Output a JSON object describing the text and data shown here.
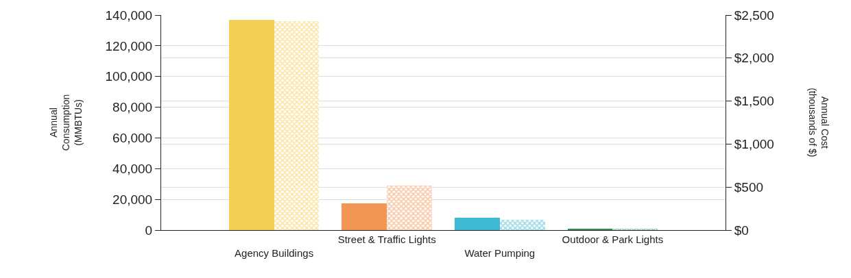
{
  "chart_data": {
    "type": "bar",
    "categories": [
      "Agency Buildings",
      "Street & Traffic Lights",
      "Water Pumping",
      "Outdoor & Park Lights"
    ],
    "series": [
      {
        "colors": [
          "#f3cf55",
          "#f29656",
          "#3db9d3",
          "#3a8f55"
        ],
        "values": [
          137000,
          17300,
          8100,
          1000
        ]
      },
      {
        "colors": [
          "#f3cf55",
          "#f29656",
          "#3db9d3",
          "#3a8f55"
        ],
        "values": [
          2430,
          515,
          120,
          15
        ],
        "axis": "y2"
      }
    ],
    "ylabel": "Annual\nConsumption\n(MMBTUs)",
    "y2label": "Annual Cost\n(thousands of $)",
    "ylim": [
      0,
      140000
    ],
    "yticks": [
      {
        "value": 0,
        "label": "0"
      },
      {
        "value": 20000,
        "label": "20,000"
      },
      {
        "value": 40000,
        "label": "40,000"
      },
      {
        "value": 60000,
        "label": "60,000"
      },
      {
        "value": 80000,
        "label": "80,000"
      },
      {
        "value": 100000,
        "label": "100,000"
      },
      {
        "value": 120000,
        "label": "120,000"
      },
      {
        "value": 140000,
        "label": "140,000"
      }
    ],
    "y2lim": [
      0,
      2500
    ],
    "y2ticks": [
      {
        "value": 0,
        "label": "$0"
      },
      {
        "value": 500,
        "label": "$500"
      },
      {
        "value": 1000,
        "label": "$1,000"
      },
      {
        "value": 1500,
        "label": "$1,500"
      },
      {
        "value": 2000,
        "label": "$2,000"
      },
      {
        "value": 2500,
        "label": "$2,500"
      }
    ],
    "grid": true
  }
}
